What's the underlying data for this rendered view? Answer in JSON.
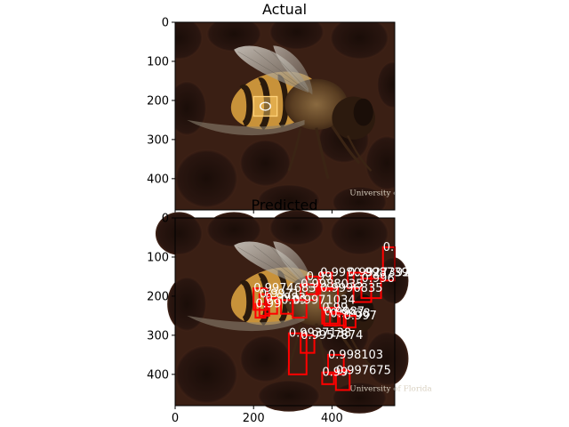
{
  "chart_data": [
    {
      "type": "image",
      "title": "Actual",
      "xlim": [
        0,
        560
      ],
      "ylim": [
        480,
        0
      ],
      "yticks": [
        0,
        100,
        200,
        300,
        400
      ],
      "xticks": [
        0,
        200,
        400
      ],
      "ground_truth_boxes": [
        {
          "x": 200,
          "y": 190,
          "w": 60,
          "h": 50
        }
      ],
      "watermark": "University of Florida"
    },
    {
      "type": "image",
      "title": "Predicted",
      "xlim": [
        0,
        560
      ],
      "ylim": [
        480,
        0
      ],
      "yticks": [
        0,
        100,
        200,
        300,
        400
      ],
      "xticks": [
        0,
        200,
        400
      ],
      "xticklabels": [
        "0",
        "200",
        "400"
      ],
      "watermark": "University of Florida",
      "box_color": "#ff0000",
      "detections": [
        {
          "label": "0.",
          "x": 530,
          "y": 75,
          "w": 30,
          "h": 85
        },
        {
          "label": "0.9987392",
          "x": 455,
          "y": 140,
          "w": 45,
          "h": 75
        },
        {
          "label": "0.998",
          "x": 370,
          "y": 140,
          "w": 30,
          "h": 45
        },
        {
          "label": "0.9927392",
          "x": 440,
          "y": 140,
          "w": 35,
          "h": 40
        },
        {
          "label": "0.99",
          "x": 335,
          "y": 150,
          "w": 30,
          "h": 45
        },
        {
          "label": "0.996",
          "x": 475,
          "y": 155,
          "w": 50,
          "h": 50
        },
        {
          "label": "0.9988035",
          "x": 320,
          "y": 170,
          "w": 40,
          "h": 40
        },
        {
          "label": "0.9974683",
          "x": 200,
          "y": 180,
          "w": 35,
          "h": 55
        },
        {
          "label": "0.9971",
          "x": 215,
          "y": 195,
          "w": 25,
          "h": 55
        },
        {
          "label": "0.9996835",
          "x": 370,
          "y": 180,
          "w": 45,
          "h": 50
        },
        {
          "label": "0.9983",
          "x": 230,
          "y": 205,
          "w": 30,
          "h": 40
        },
        {
          "label": "0.99",
          "x": 270,
          "y": 210,
          "w": 30,
          "h": 35
        },
        {
          "label": "0.9971034",
          "x": 300,
          "y": 210,
          "w": 35,
          "h": 45
        },
        {
          "label": "0.99",
          "x": 205,
          "y": 220,
          "w": 25,
          "h": 35
        },
        {
          "label": "0.99",
          "x": 375,
          "y": 230,
          "w": 40,
          "h": 40
        },
        {
          "label": "0.9987",
          "x": 380,
          "y": 240,
          "w": 40,
          "h": 35
        },
        {
          "label": "0.9938",
          "x": 395,
          "y": 245,
          "w": 40,
          "h": 30
        },
        {
          "label": "0.997",
          "x": 430,
          "y": 250,
          "w": 30,
          "h": 30
        },
        {
          "label": "0.9937138",
          "x": 290,
          "y": 295,
          "w": 45,
          "h": 105
        },
        {
          "label": "0.9957874",
          "x": 320,
          "y": 300,
          "w": 35,
          "h": 45
        },
        {
          "label": "0.998103",
          "x": 390,
          "y": 350,
          "w": 40,
          "h": 50
        },
        {
          "label": "0.997675",
          "x": 410,
          "y": 390,
          "w": 35,
          "h": 50
        },
        {
          "label": "0.99",
          "x": 375,
          "y": 395,
          "w": 30,
          "h": 30
        }
      ]
    }
  ]
}
